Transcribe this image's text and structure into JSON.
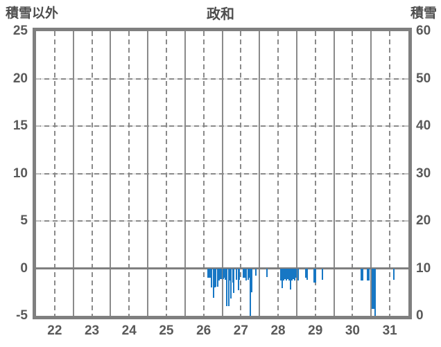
{
  "header": {
    "left_axis_title": "積雪以外",
    "title": "政和",
    "right_axis_title": "積雪"
  },
  "chart_data": {
    "type": "bar",
    "title": "政和",
    "x_axis": {
      "tick_labels": [
        "22",
        "23",
        "24",
        "25",
        "26",
        "27",
        "28",
        "29",
        "30",
        "31"
      ],
      "tick_positions": [
        22,
        23,
        24,
        25,
        26,
        27,
        28,
        29,
        30,
        31
      ],
      "range": [
        21.5,
        31.5
      ],
      "solid_gridlines": [
        22.5,
        23.5,
        24.5,
        25.5,
        26.5,
        27.5,
        28.5,
        29.5,
        30.5
      ],
      "dashed_gridlines": [
        22,
        23,
        24,
        25,
        26,
        27,
        28,
        29,
        30,
        31
      ]
    },
    "left_axis": {
      "label": "積雪以外",
      "tick_labels": [
        "25",
        "20",
        "15",
        "10",
        "5",
        "0",
        "-5"
      ],
      "tick_positions": [
        25,
        20,
        15,
        10,
        5,
        0,
        -5
      ],
      "range": [
        -5,
        25
      ],
      "dashed_gridlines": [
        20,
        15,
        10,
        5
      ],
      "baseline": 0
    },
    "right_axis": {
      "label": "積雪",
      "tick_labels": [
        "60",
        "50",
        "40",
        "30",
        "20",
        "10",
        "0"
      ],
      "tick_positions": [
        25,
        20,
        15,
        10,
        5,
        0,
        -5
      ],
      "range": [
        0,
        60
      ]
    },
    "legend": "none",
    "grid": "on",
    "series": [
      {
        "name": "daily-values",
        "color": "#1777c4",
        "bar_width_x": 0.037,
        "points_format": "[x_year, value_left_axis]",
        "points": [
          [
            26.11,
            -1.0
          ],
          [
            26.15,
            -1.0
          ],
          [
            26.19,
            -1.0
          ],
          [
            26.22,
            -2.0
          ],
          [
            26.26,
            -3.1
          ],
          [
            26.3,
            -2.0
          ],
          [
            26.33,
            -1.9
          ],
          [
            26.37,
            -1.9
          ],
          [
            26.41,
            -1.3
          ],
          [
            26.44,
            -1.1
          ],
          [
            26.48,
            -1.1
          ],
          [
            26.52,
            -1.1
          ],
          [
            26.56,
            -1.0
          ],
          [
            26.59,
            -1.2
          ],
          [
            26.63,
            -4.0
          ],
          [
            26.67,
            -4.0
          ],
          [
            26.7,
            -1.3
          ],
          [
            26.74,
            -3.2
          ],
          [
            26.78,
            -1.5
          ],
          [
            26.81,
            -2.6
          ],
          [
            26.89,
            -1.2
          ],
          [
            26.93,
            -2.3
          ],
          [
            26.96,
            -1.2
          ],
          [
            27.07,
            -1.0
          ],
          [
            27.11,
            -1.0
          ],
          [
            27.15,
            -1.3
          ],
          [
            27.19,
            -1.2
          ],
          [
            27.22,
            -1.0
          ],
          [
            27.26,
            -5.0
          ],
          [
            27.3,
            -2.5
          ],
          [
            27.41,
            -0.8
          ],
          [
            27.7,
            -0.9
          ],
          [
            28.07,
            -1.25
          ],
          [
            28.11,
            -2.1
          ],
          [
            28.15,
            -1.25
          ],
          [
            28.19,
            -1.1
          ],
          [
            28.22,
            -1.25
          ],
          [
            28.26,
            -1.1
          ],
          [
            28.3,
            -1.25
          ],
          [
            28.33,
            -2.2
          ],
          [
            28.37,
            -1.25
          ],
          [
            28.41,
            -1.1
          ],
          [
            28.44,
            -1.25
          ],
          [
            28.48,
            -1.0
          ],
          [
            28.54,
            -1.3
          ],
          [
            28.74,
            -1.0
          ],
          [
            28.78,
            -1.2
          ],
          [
            28.96,
            -1.5
          ],
          [
            29.0,
            -1.5
          ],
          [
            29.19,
            -1.2
          ],
          [
            30.24,
            -1.25
          ],
          [
            30.28,
            -1.25
          ],
          [
            30.41,
            -1.25
          ],
          [
            30.44,
            -1.25
          ],
          [
            30.54,
            -4.3
          ],
          [
            30.57,
            -4.3
          ],
          [
            30.61,
            -5.0
          ],
          [
            31.11,
            -1.2
          ]
        ]
      }
    ],
    "colors": {
      "frame": "#7f7f7f",
      "solid_grid": "#8a8a8a",
      "dashed_grid": "#8a8a8a",
      "dashed_grid_underlay": "#e3e3e3",
      "zero_line": "#7f7f7f",
      "tick_text": "#595959",
      "title_text": "#4d4d4d",
      "bar": "#1777c4",
      "background": "#ffffff"
    }
  }
}
